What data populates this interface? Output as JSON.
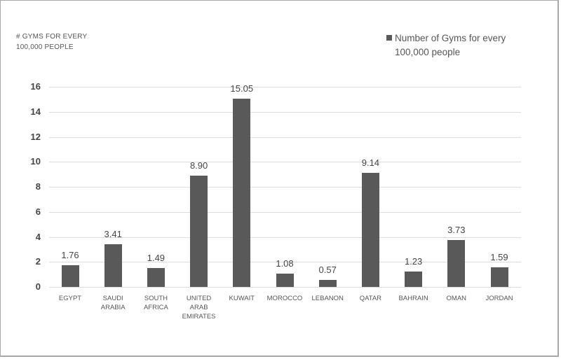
{
  "chart_data": {
    "type": "bar",
    "title": "",
    "ylabel": "# GYMS FOR EVERY 100,000 PEOPLE",
    "xlabel": "",
    "ylim": [
      0,
      16
    ],
    "yticks": [
      0,
      2,
      4,
      6,
      8,
      10,
      12,
      14,
      16
    ],
    "grid": true,
    "legend_position": "top-right",
    "categories": [
      "EGYPT",
      "SAUDI ARABIA",
      "SOUTH AFRICA",
      "UNITED ARAB EMIRATES",
      "KUWAIT",
      "MOROCCO",
      "LEBANON",
      "QATAR",
      "BAHRAIN",
      "OMAN",
      "JORDAN"
    ],
    "series": [
      {
        "name": "Number of Gyms for every 100,000 people",
        "values": [
          1.76,
          3.41,
          1.49,
          8.9,
          15.05,
          1.08,
          0.57,
          9.14,
          1.23,
          3.73,
          1.59
        ],
        "color": "#595959"
      }
    ]
  },
  "ytitle": {
    "line1": "# GYMS FOR EVERY",
    "line2": "100,000 PEOPLE"
  },
  "legend": {
    "line1": "Number of Gyms for every",
    "line2": "100,000 people"
  },
  "xlabels": [
    [
      "EGYPT"
    ],
    [
      "SAUDI",
      "ARABIA"
    ],
    [
      "SOUTH",
      "AFRICA"
    ],
    [
      "UNITED",
      "ARAB",
      "EMIRATES"
    ],
    [
      "KUWAIT"
    ],
    [
      "MOROCCO"
    ],
    [
      "LEBANON"
    ],
    [
      "QATAR"
    ],
    [
      "BAHRAIN"
    ],
    [
      "OMAN"
    ],
    [
      "JORDAN"
    ]
  ],
  "value_labels": [
    "1.76",
    "3.41",
    "1.49",
    "8.90",
    "15.05",
    "1.08",
    "0.57",
    "9.14",
    "1.23",
    "3.73",
    "1.59"
  ]
}
